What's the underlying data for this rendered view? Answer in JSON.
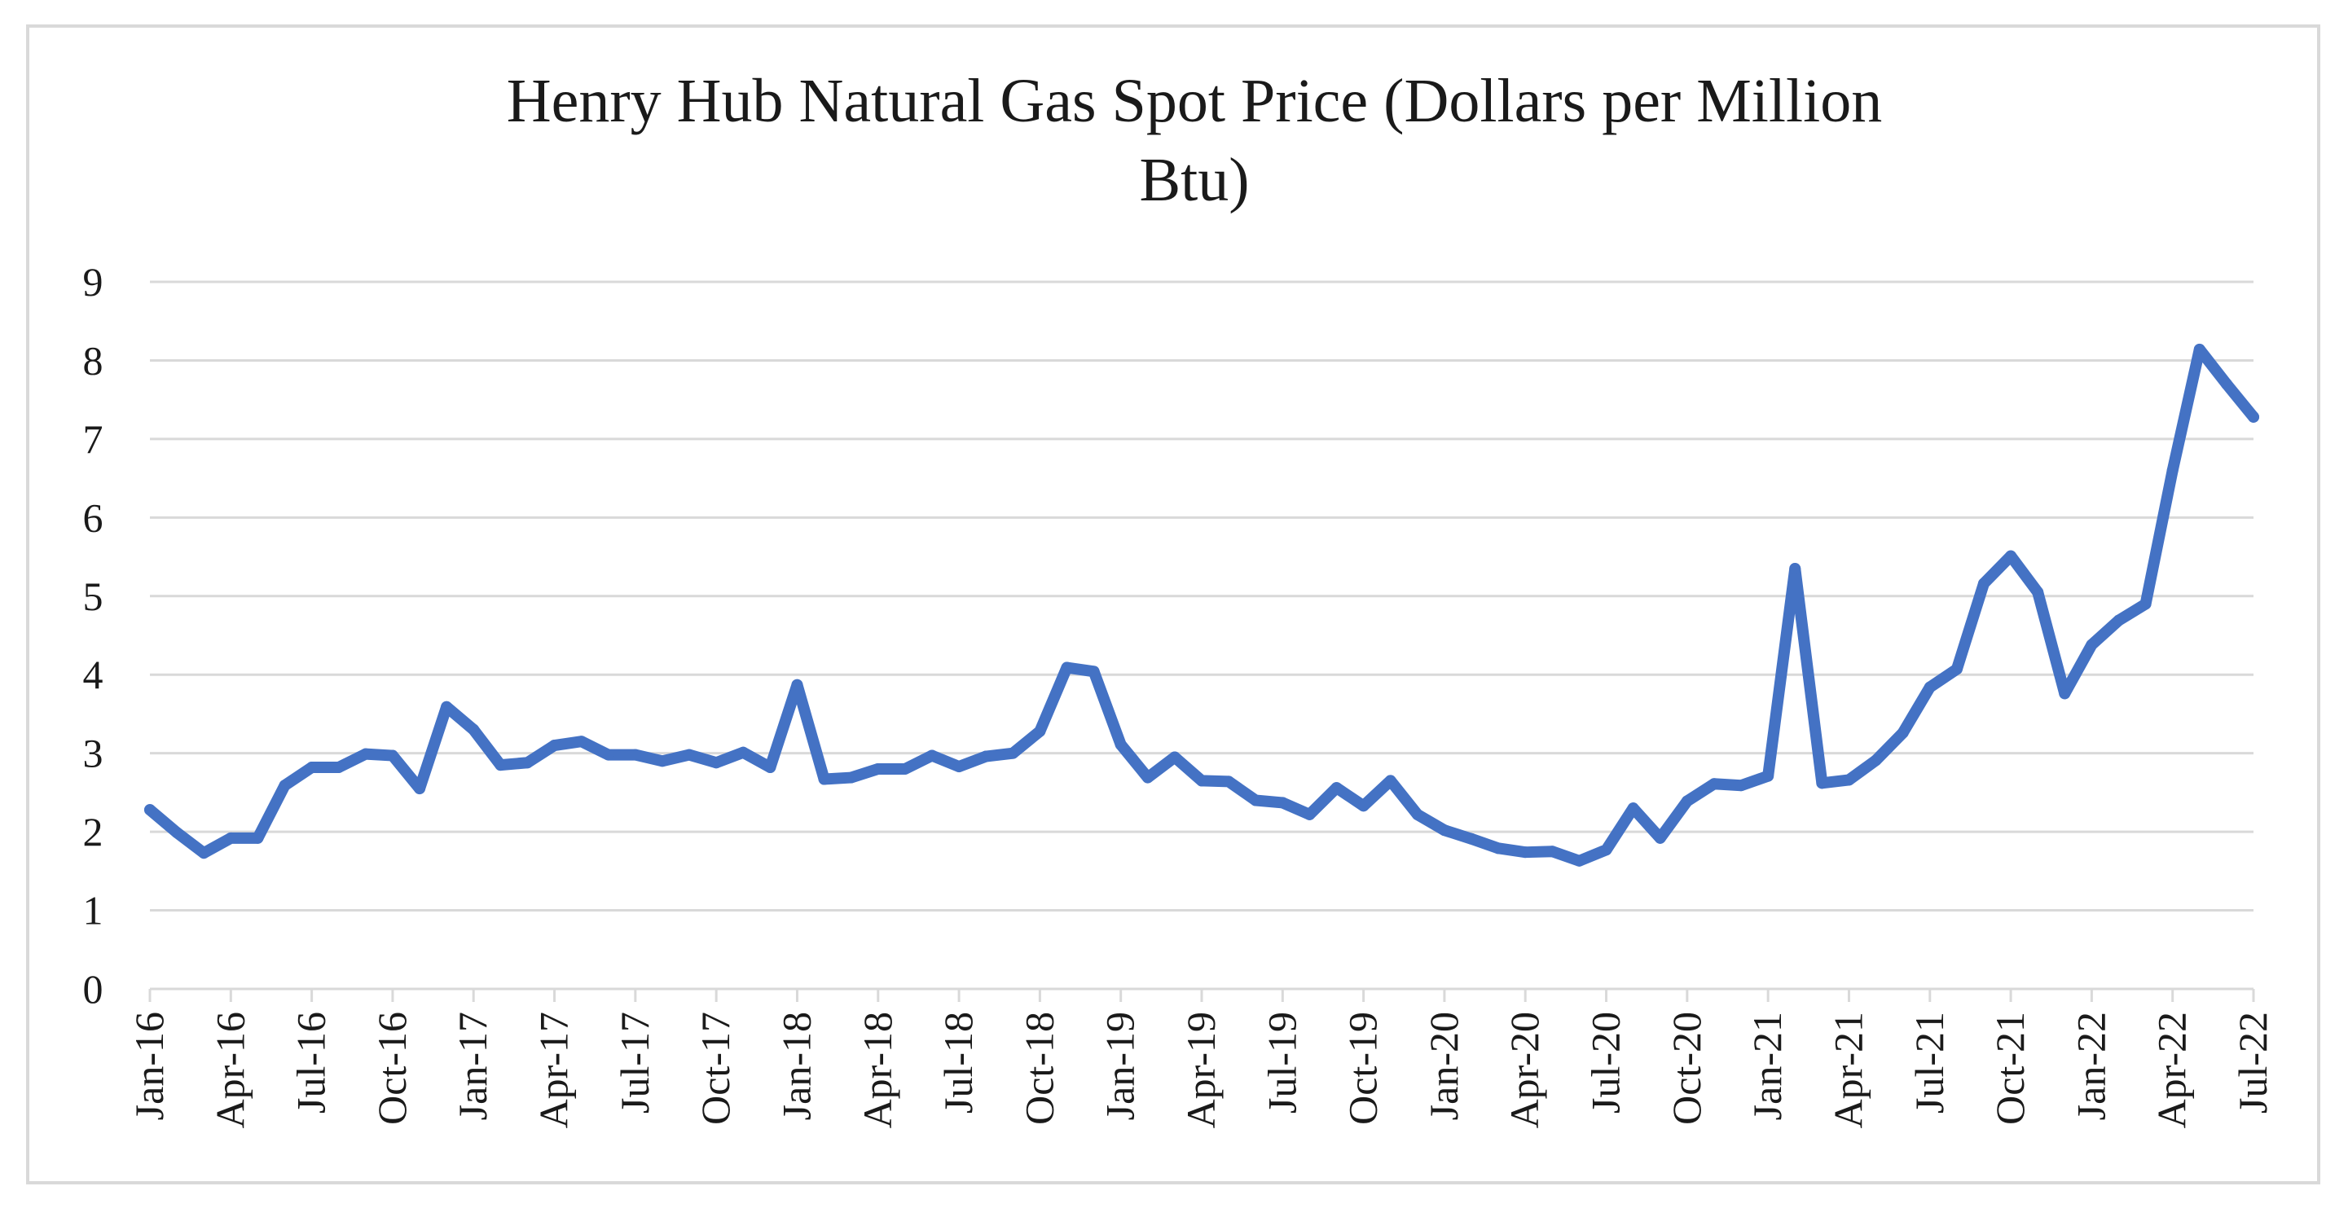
{
  "chart_data": {
    "type": "line",
    "title": "Henry Hub Natural Gas Spot Price (Dollars per Million Btu)",
    "title_lines": [
      "Henry Hub Natural Gas Spot Price (Dollars per Million",
      "Btu)"
    ],
    "xlabel": "",
    "ylabel": "",
    "ylim": [
      0,
      9
    ],
    "y_ticks": [
      "0",
      "1",
      "2",
      "3",
      "4",
      "5",
      "6",
      "7",
      "8",
      "9"
    ],
    "x_tick_labels": [
      "Jan-16",
      "Apr-16",
      "Jul-16",
      "Oct-16",
      "Jan-17",
      "Apr-17",
      "Jul-17",
      "Oct-17",
      "Jan-18",
      "Apr-18",
      "Jul-18",
      "Oct-18",
      "Jan-19",
      "Apr-19",
      "Jul-19",
      "Oct-19",
      "Jan-20",
      "Apr-20",
      "Jul-20",
      "Oct-20",
      "Jan-21",
      "Apr-21",
      "Jul-21",
      "Oct-21",
      "Jan-22",
      "Apr-22",
      "Jul-22"
    ],
    "grid": true,
    "legend": "none",
    "line_color": "#4472c4",
    "grid_color": "#d9d9d9",
    "series": [
      {
        "x": [
          "Jan-16",
          "Feb-16",
          "Mar-16",
          "Apr-16",
          "May-16",
          "Jun-16",
          "Jul-16",
          "Aug-16",
          "Sep-16",
          "Oct-16",
          "Nov-16",
          "Dec-16",
          "Jan-17",
          "Feb-17",
          "Mar-17",
          "Apr-17",
          "May-17",
          "Jun-17",
          "Jul-17",
          "Aug-17",
          "Sep-17",
          "Oct-17",
          "Nov-17",
          "Dec-17",
          "Jan-18",
          "Feb-18",
          "Mar-18",
          "Apr-18",
          "May-18",
          "Jun-18",
          "Jul-18",
          "Aug-18",
          "Sep-18",
          "Oct-18",
          "Nov-18",
          "Dec-18",
          "Jan-19",
          "Feb-19",
          "Mar-19",
          "Apr-19",
          "May-19",
          "Jun-19",
          "Jul-19",
          "Aug-19",
          "Sep-19",
          "Oct-19",
          "Nov-19",
          "Dec-19",
          "Jan-20",
          "Feb-20",
          "Mar-20",
          "Apr-20",
          "May-20",
          "Jun-20",
          "Jul-20",
          "Aug-20",
          "Sep-20",
          "Oct-20",
          "Nov-20",
          "Dec-20",
          "Jan-21",
          "Feb-21",
          "Mar-21",
          "Apr-21",
          "May-21",
          "Jun-21",
          "Jul-21",
          "Aug-21",
          "Sep-21",
          "Oct-21",
          "Nov-21",
          "Dec-21",
          "Jan-22",
          "Feb-22",
          "Mar-22",
          "Apr-22",
          "May-22",
          "Jun-22",
          "Jul-22"
        ],
        "values": [
          2.28,
          1.99,
          1.73,
          1.92,
          1.92,
          2.59,
          2.82,
          2.82,
          2.99,
          2.97,
          2.55,
          3.59,
          3.3,
          2.85,
          2.88,
          3.1,
          3.15,
          2.98,
          2.98,
          2.9,
          2.98,
          2.88,
          3.01,
          2.82,
          3.87,
          2.67,
          2.69,
          2.8,
          2.8,
          2.97,
          2.83,
          2.96,
          3.0,
          3.28,
          4.09,
          4.04,
          3.11,
          2.69,
          2.95,
          2.65,
          2.64,
          2.4,
          2.37,
          2.22,
          2.56,
          2.33,
          2.65,
          2.22,
          2.02,
          1.91,
          1.79,
          1.74,
          1.75,
          1.63,
          1.77,
          2.3,
          1.92,
          2.39,
          2.61,
          2.59,
          2.71,
          5.35,
          2.62,
          2.66,
          2.91,
          3.26,
          3.84,
          4.07,
          5.16,
          5.51,
          5.05,
          3.76,
          4.38,
          4.69,
          4.9,
          6.6,
          8.14,
          7.7,
          7.28
        ]
      }
    ]
  }
}
